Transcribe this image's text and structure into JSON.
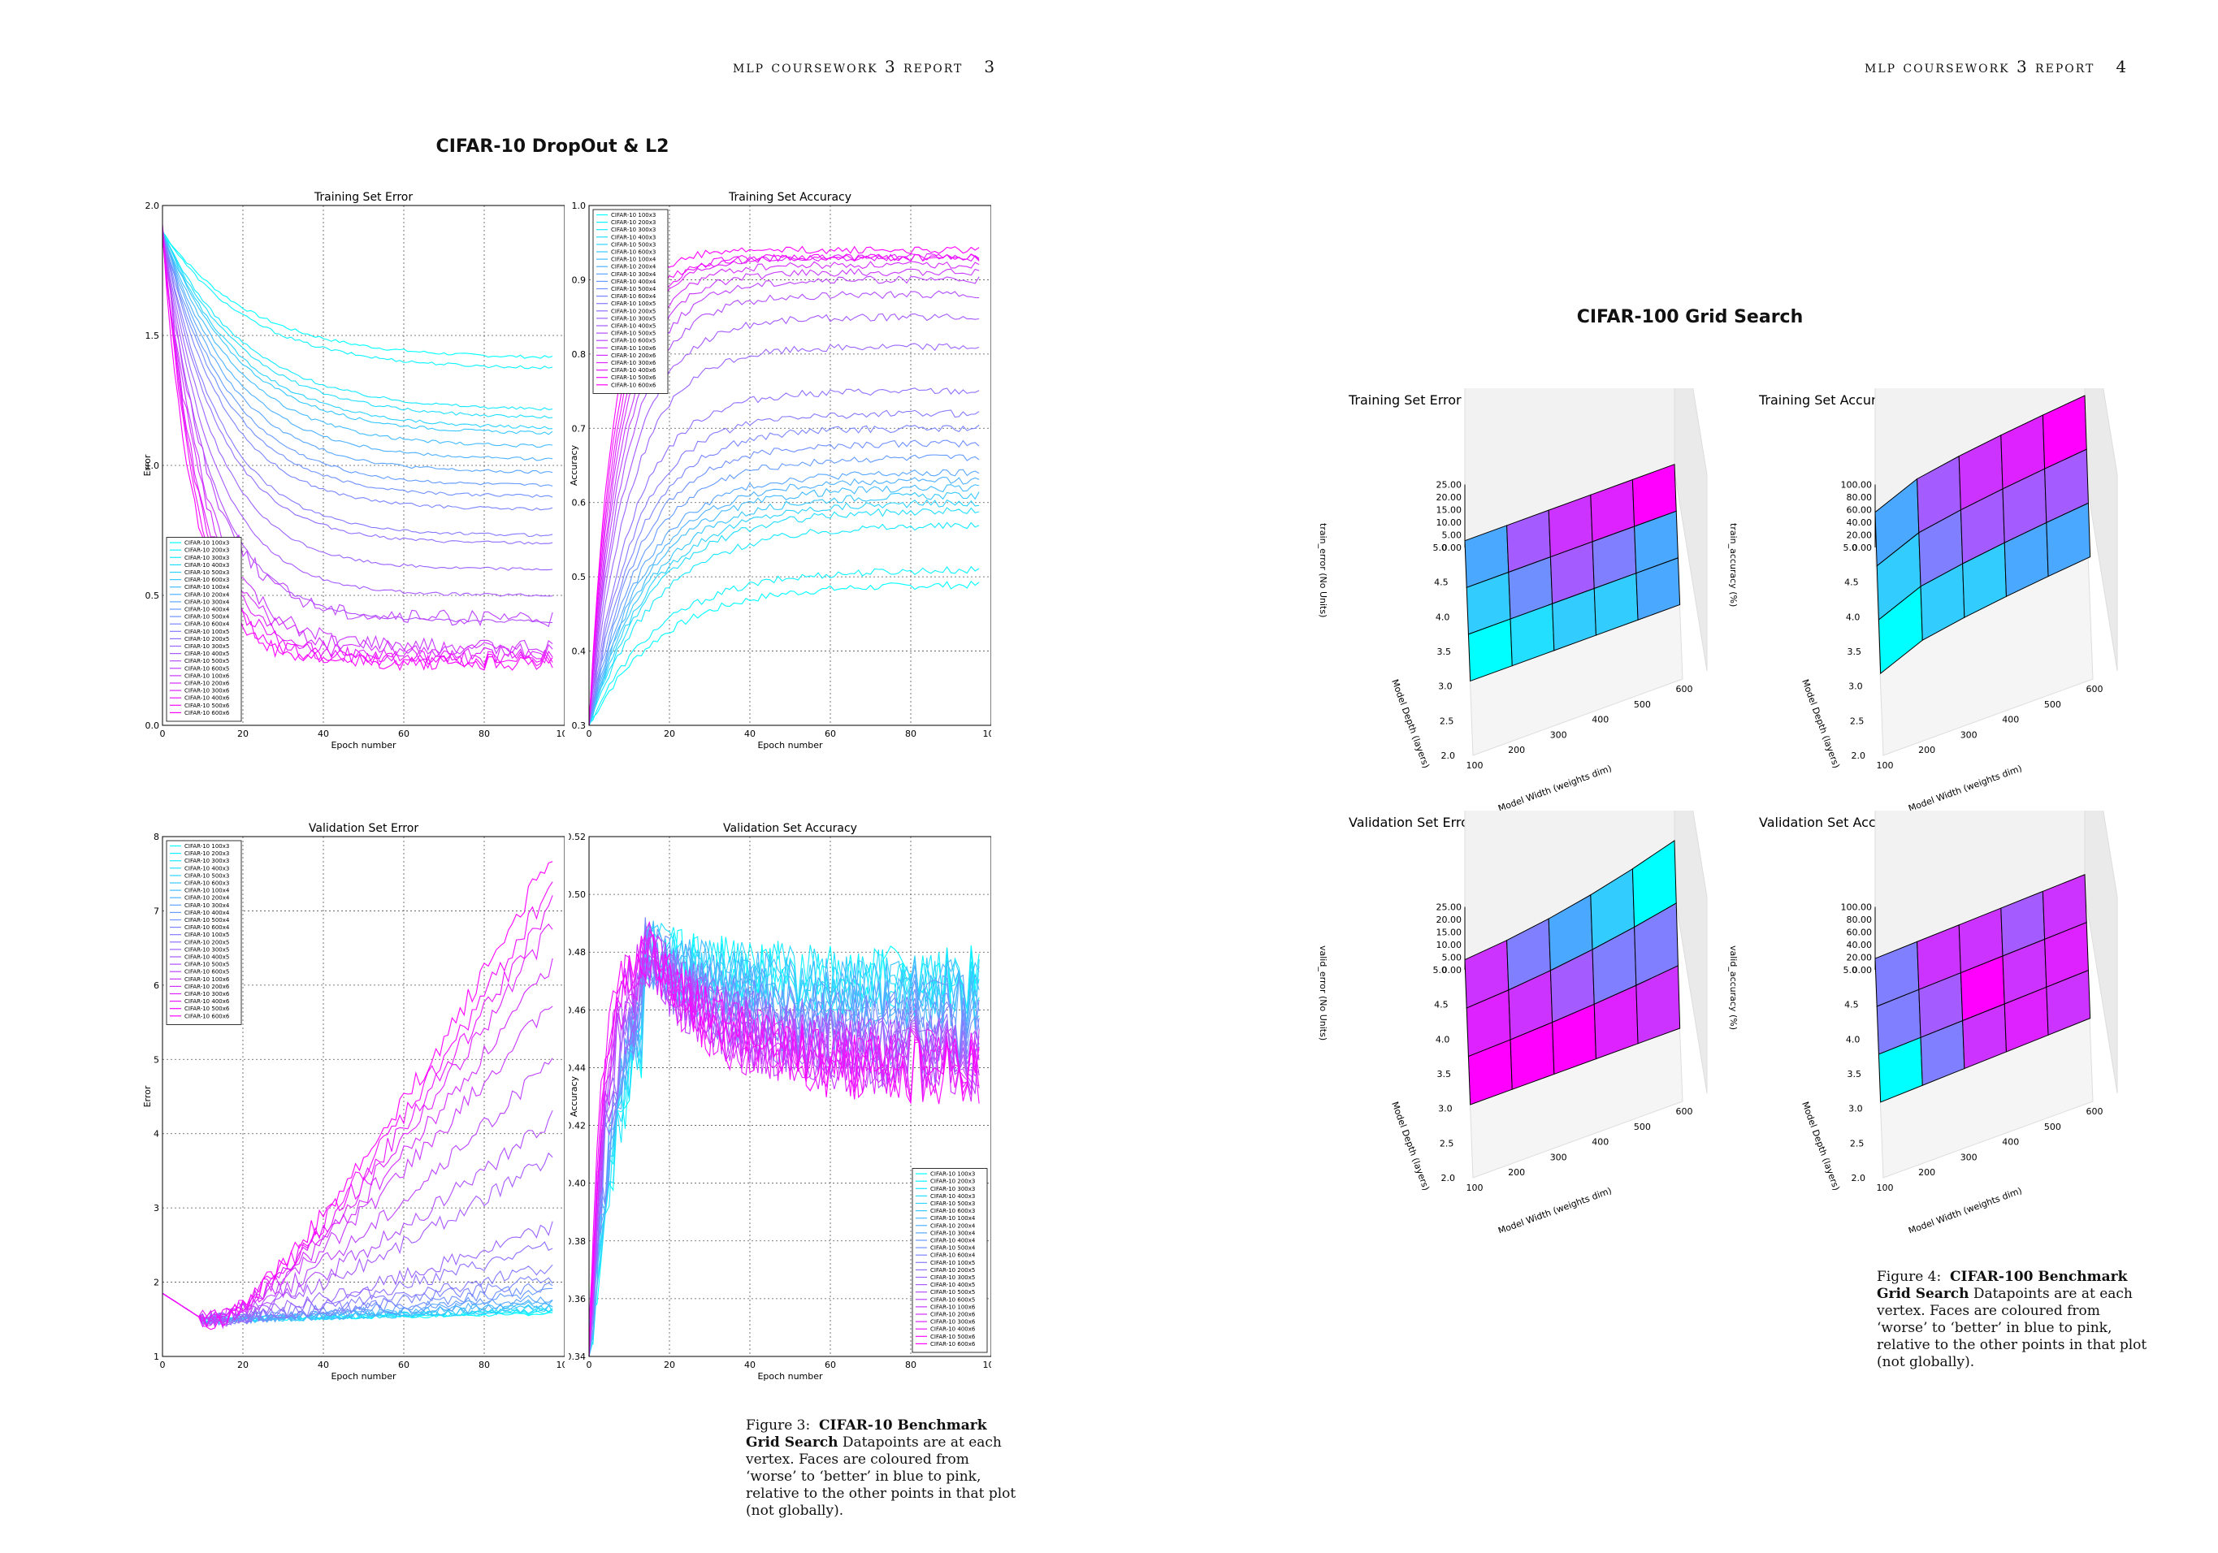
{
  "left_page": {
    "running_head": "mlp coursework 3 report",
    "page_number": "3",
    "figure_title": "CIFAR-10 DropOut & L2",
    "caption": {
      "label": "Figure 3:",
      "bold": "CIFAR-10 Benchmark Grid Search",
      "text": "Datapoints are at each vertex. Faces are coloured from ‘worse’ to ‘better’ in blue to pink, relative to the other points in that plot (not globally)."
    }
  },
  "right_page": {
    "running_head": "mlp coursework 3 report",
    "page_number": "4",
    "figure_title": "CIFAR-100 Grid Search",
    "caption": {
      "label": "Figure 4:",
      "bold": "CIFAR-100 Benchmark Grid Search",
      "text": "Datapoints are at each vertex. Faces are coloured from ‘worse’ to ‘better’ in blue to pink, relative to the other points in that plot (not globally)."
    }
  },
  "legend_labels": [
    "CIFAR-10 100x3",
    "CIFAR-10 200x3",
    "CIFAR-10 300x3",
    "CIFAR-10 400x3",
    "CIFAR-10 500x3",
    "CIFAR-10 600x3",
    "CIFAR-10 100x4",
    "CIFAR-10 200x4",
    "CIFAR-10 300x4",
    "CIFAR-10 400x4",
    "CIFAR-10 500x4",
    "CIFAR-10 600x4",
    "CIFAR-10 100x5",
    "CIFAR-10 200x5",
    "CIFAR-10 300x5",
    "CIFAR-10 400x5",
    "CIFAR-10 500x5",
    "CIFAR-10 600x5",
    "CIFAR-10 100x6",
    "CIFAR-10 200x6",
    "CIFAR-10 300x6",
    "CIFAR-10 400x6",
    "CIFAR-10 500x6",
    "CIFAR-10 600x6"
  ],
  "colors": {
    "cyan": "#00ffff",
    "magenta": "#ff00ff"
  },
  "chart_data": [
    {
      "type": "line",
      "title": "Training Set Error",
      "xlabel": "Epoch number",
      "ylabel": "Error",
      "xlim": [
        0,
        100
      ],
      "ylim": [
        0.0,
        2.0
      ],
      "xticks": [
        "0",
        "20",
        "40",
        "60",
        "80",
        "100"
      ],
      "yticks": [
        "0.0",
        "0.5",
        "1.0",
        "1.5",
        "2.0"
      ],
      "legend_position": "lower-left",
      "series_start": 1.9,
      "series_final": [
        1.41,
        1.37,
        1.21,
        1.18,
        1.14,
        1.12,
        1.07,
        1.02,
        0.97,
        0.92,
        0.88,
        0.83,
        0.73,
        0.7,
        0.6,
        0.5,
        0.4,
        0.41,
        0.3,
        0.29,
        0.27,
        0.26,
        0.25,
        0.24
      ]
    },
    {
      "type": "line",
      "title": "Training Set Accuracy",
      "xlabel": "Epoch number",
      "ylabel": "Accuracy",
      "xlim": [
        0,
        100
      ],
      "ylim": [
        0.3,
        1.0
      ],
      "xticks": [
        "0",
        "20",
        "40",
        "60",
        "80",
        "100"
      ],
      "yticks": [
        "0.3",
        "0.4",
        "0.5",
        "0.6",
        "0.7",
        "0.8",
        "0.9",
        "1.0"
      ],
      "legend_position": "upper-left",
      "series_start": 0.3,
      "series_final": [
        0.49,
        0.51,
        0.57,
        0.59,
        0.6,
        0.61,
        0.62,
        0.63,
        0.64,
        0.66,
        0.68,
        0.7,
        0.72,
        0.75,
        0.81,
        0.85,
        0.88,
        0.9,
        0.91,
        0.92,
        0.93,
        0.93,
        0.93,
        0.94
      ]
    },
    {
      "type": "line",
      "title": "Validation Set Error",
      "xlabel": "Epoch number",
      "ylabel": "Error",
      "xlim": [
        0,
        100
      ],
      "ylim": [
        1,
        8
      ],
      "xticks": [
        "0",
        "20",
        "40",
        "60",
        "80",
        "100"
      ],
      "yticks": [
        "1",
        "2",
        "3",
        "4",
        "5",
        "6",
        "7",
        "8"
      ],
      "legend_position": "upper-left",
      "series_min": 1.5,
      "series_final": [
        1.58,
        1.6,
        1.62,
        1.63,
        1.65,
        1.66,
        1.7,
        1.72,
        1.78,
        1.85,
        1.95,
        2.05,
        2.2,
        2.5,
        2.75,
        3.7,
        4.2,
        5.0,
        5.8,
        6.3,
        6.8,
        7.1,
        7.4,
        7.8
      ]
    },
    {
      "type": "line",
      "title": "Validation Set Accuracy",
      "xlabel": "Epoch number",
      "ylabel": "Accuracy",
      "xlim": [
        0,
        100
      ],
      "ylim": [
        0.34,
        0.52
      ],
      "xticks": [
        "0",
        "20",
        "40",
        "60",
        "80",
        "100"
      ],
      "yticks": [
        "0.34",
        "0.36",
        "0.38",
        "0.40",
        "0.42",
        "0.44",
        "0.46",
        "0.48",
        "0.50",
        "0.52"
      ],
      "legend_position": "lower-right",
      "series_start": 0.34,
      "series_final": [
        0.47,
        0.47,
        0.47,
        0.468,
        0.466,
        0.465,
        0.465,
        0.463,
        0.46,
        0.458,
        0.455,
        0.452,
        0.45,
        0.448,
        0.446,
        0.445,
        0.444,
        0.443,
        0.442,
        0.441,
        0.44,
        0.44,
        0.439,
        0.438
      ]
    },
    {
      "type": "surface3d",
      "title": "Training Set Error",
      "xlabel": "Model Width (weights dim)",
      "ylabel": "Model Depth (layers)",
      "zlabel": "train_error (No Units)",
      "xticks": [
        "100",
        "200",
        "300",
        "400",
        "500",
        "600"
      ],
      "yticks": [
        "2.0",
        "2.5",
        "3.0",
        "3.5",
        "4.0",
        "4.5",
        "5.0"
      ],
      "zticks": [
        "0.00",
        "5.00",
        "10.00",
        "15.00",
        "20.00",
        "25.00"
      ]
    },
    {
      "type": "surface3d",
      "title": "Training Set Accuracy",
      "xlabel": "Model Width (weights dim)",
      "ylabel": "Model Depth (layers)",
      "zlabel": "train_accuracy (%)",
      "xticks": [
        "100",
        "200",
        "300",
        "400",
        "500",
        "600"
      ],
      "yticks": [
        "2.0",
        "2.5",
        "3.0",
        "3.5",
        "4.0",
        "4.5",
        "5.0"
      ],
      "zticks": [
        "0.00",
        "20.00",
        "40.00",
        "60.00",
        "80.00",
        "100.00"
      ]
    },
    {
      "type": "surface3d",
      "title": "Validation Set Error",
      "xlabel": "Model Width (weights dim)",
      "ylabel": "Model Depth (layers)",
      "zlabel": "valid_error (No Units)",
      "xticks": [
        "100",
        "200",
        "300",
        "400",
        "500",
        "600"
      ],
      "yticks": [
        "2.0",
        "2.5",
        "3.0",
        "3.5",
        "4.0",
        "4.5",
        "5.0"
      ],
      "zticks": [
        "0.00",
        "5.00",
        "10.00",
        "15.00",
        "20.00",
        "25.00"
      ]
    },
    {
      "type": "surface3d",
      "title": "Validation Set Accuracy",
      "xlabel": "Model Width (weights dim)",
      "ylabel": "Model Depth (layers)",
      "zlabel": "valid_accuracy (%)",
      "xticks": [
        "100",
        "200",
        "300",
        "400",
        "500",
        "600"
      ],
      "yticks": [
        "2.0",
        "2.5",
        "3.0",
        "3.5",
        "4.0",
        "4.5",
        "5.0"
      ],
      "zticks": [
        "0.00",
        "20.00",
        "40.00",
        "60.00",
        "80.00",
        "100.00"
      ]
    }
  ]
}
